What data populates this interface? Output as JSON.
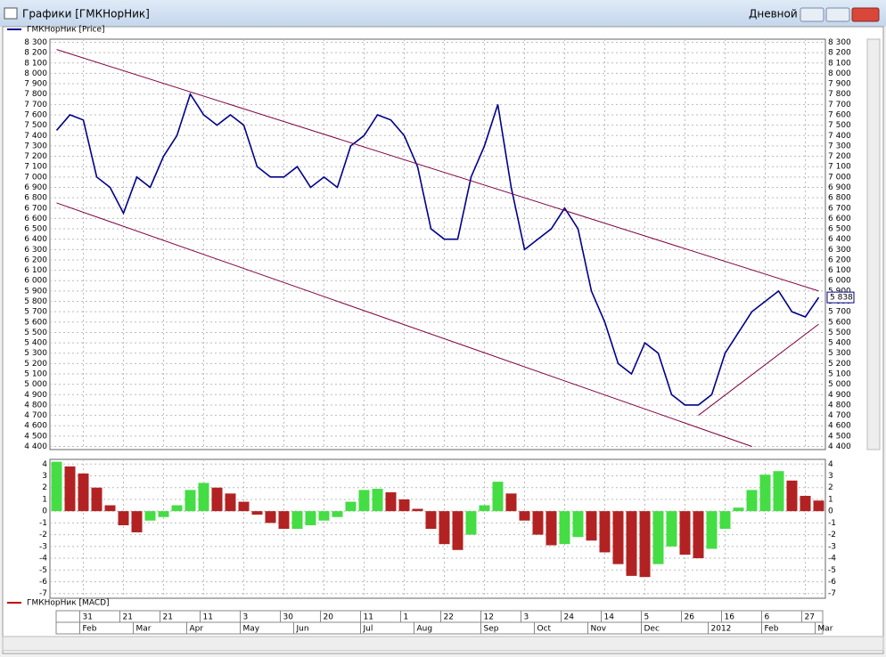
{
  "window": {
    "title": "Графики [ГМКНорНик]",
    "timeframe": "Дневной"
  },
  "chart_data": [
    {
      "type": "line",
      "categories": [
        null,
        null,
        "31",
        null,
        null,
        "21",
        null,
        null,
        "21",
        null,
        null,
        "11",
        null,
        null,
        "3",
        null,
        null,
        "30",
        null,
        null,
        "20",
        null,
        null,
        "11",
        null,
        null,
        "1",
        null,
        null,
        "22",
        null,
        null,
        "12",
        null,
        null,
        "3",
        null,
        null,
        "24",
        null,
        null,
        "14",
        null,
        null,
        "5",
        null,
        null,
        "26",
        null,
        null,
        "16",
        null,
        null,
        "6",
        null,
        null,
        "27",
        null
      ],
      "months": [
        null,
        null,
        "Feb",
        null,
        null,
        null,
        "Mar",
        null,
        null,
        null,
        "Apr",
        null,
        null,
        null,
        "May",
        null,
        null,
        null,
        "Jun",
        null,
        null,
        null,
        null,
        "Jul",
        null,
        null,
        null,
        "Aug",
        null,
        null,
        null,
        null,
        "Sep",
        null,
        null,
        null,
        "Oct",
        null,
        null,
        null,
        "Nov",
        null,
        null,
        null,
        "Dec",
        null,
        null,
        null,
        null,
        "2012",
        null,
        null,
        null,
        "Feb",
        null,
        null,
        null,
        "Mar"
      ],
      "series": [
        {
          "name": "ГМКНорНик [Price]",
          "color": "#00008b",
          "values": [
            7450,
            7600,
            7550,
            7000,
            6900,
            6650,
            7000,
            6900,
            7200,
            7400,
            7800,
            7600,
            7500,
            7600,
            7500,
            7100,
            7000,
            7000,
            7100,
            6900,
            7000,
            6900,
            7300,
            7400,
            7600,
            7550,
            7400,
            7100,
            6500,
            6400,
            6400,
            7000,
            7300,
            7700,
            6900,
            6300,
            6400,
            6500,
            6700,
            6500,
            5900,
            5600,
            5200,
            5100,
            5400,
            5300,
            4900,
            4800,
            4800,
            4900,
            5300,
            5500,
            5700,
            5800,
            5900,
            5700,
            5650,
            5838
          ]
        }
      ],
      "last_label": {
        "value": 5838,
        "label": "5 838"
      },
      "trendlines": [
        {
          "x": [
            0,
            57
          ],
          "y": [
            8230,
            5900
          ]
        },
        {
          "x": [
            0,
            52
          ],
          "y": [
            6750,
            4400
          ]
        },
        {
          "x": [
            48,
            57
          ],
          "y": [
            4700,
            5580
          ]
        }
      ],
      "trendline_color": "#800040",
      "ylim": [
        4370,
        8330
      ],
      "yticks": [
        {
          "value": 4400,
          "label": "4 400"
        },
        {
          "value": 4500,
          "label": "4 500"
        },
        {
          "value": 4600,
          "label": "4 600"
        },
        {
          "value": 4700,
          "label": "4 700"
        },
        {
          "value": 4800,
          "label": "4 800"
        },
        {
          "value": 4900,
          "label": "4 900"
        },
        {
          "value": 5000,
          "label": "5 000"
        },
        {
          "value": 5100,
          "label": "5 100"
        },
        {
          "value": 5200,
          "label": "5 200"
        },
        {
          "value": 5300,
          "label": "5 300"
        },
        {
          "value": 5400,
          "label": "5 400"
        },
        {
          "value": 5500,
          "label": "5 500"
        },
        {
          "value": 5600,
          "label": "5 600"
        },
        {
          "value": 5700,
          "label": "5 700"
        },
        {
          "value": 5800,
          "label": "5 800"
        },
        {
          "value": 5900,
          "label": "5 900"
        },
        {
          "value": 6000,
          "label": "6 000"
        },
        {
          "value": 6100,
          "label": "6 100"
        },
        {
          "value": 6200,
          "label": "6 200"
        },
        {
          "value": 6300,
          "label": "6 300"
        },
        {
          "value": 6400,
          "label": "6 400"
        },
        {
          "value": 6500,
          "label": "6 500"
        },
        {
          "value": 6600,
          "label": "6 600"
        },
        {
          "value": 6700,
          "label": "6 700"
        },
        {
          "value": 6800,
          "label": "6 800"
        },
        {
          "value": 6900,
          "label": "6 900"
        },
        {
          "value": 7000,
          "label": "7 000"
        },
        {
          "value": 7100,
          "label": "7 100"
        },
        {
          "value": 7200,
          "label": "7 200"
        },
        {
          "value": 7300,
          "label": "7 300"
        },
        {
          "value": 7400,
          "label": "7 400"
        },
        {
          "value": 7500,
          "label": "7 500"
        },
        {
          "value": 7600,
          "label": "7 600"
        },
        {
          "value": 7700,
          "label": "7 700"
        },
        {
          "value": 7800,
          "label": "7 800"
        },
        {
          "value": 7900,
          "label": "7 900"
        },
        {
          "value": 8000,
          "label": "8 000"
        },
        {
          "value": 8100,
          "label": "8 100"
        },
        {
          "value": 8200,
          "label": "8 200"
        },
        {
          "value": 8300,
          "label": "8 300"
        }
      ],
      "grid": true
    },
    {
      "type": "bar",
      "series": [
        {
          "name": "ГМКНорНик [MACD]",
          "color": "#c00000",
          "values": [
            4.2,
            3.8,
            3.2,
            2.0,
            0.5,
            -1.2,
            -1.8,
            -0.8,
            -0.5,
            0.5,
            1.8,
            2.4,
            2.0,
            1.5,
            0.8,
            -0.3,
            -1.0,
            -1.5,
            -1.5,
            -1.2,
            -0.8,
            -0.5,
            0.8,
            1.8,
            1.9,
            1.6,
            1.0,
            0.2,
            -1.5,
            -2.8,
            -3.3,
            -2.0,
            0.5,
            2.5,
            1.5,
            -0.8,
            -2.0,
            -2.9,
            -2.8,
            -2.2,
            -2.5,
            -3.5,
            -4.5,
            -5.5,
            -5.6,
            -4.5,
            -3.0,
            -3.7,
            -4.0,
            -3.2,
            -1.5,
            0.3,
            1.8,
            3.1,
            3.4,
            2.6,
            1.3,
            0.9
          ]
        }
      ],
      "up_color": "#44dd44",
      "down_color": "#b22222",
      "ylim": [
        -7.4,
        4.4
      ],
      "yticks": [
        -7,
        -6,
        -5,
        -4,
        -3,
        -2,
        -1,
        0,
        1,
        2,
        3,
        4
      ],
      "grid": true
    }
  ]
}
